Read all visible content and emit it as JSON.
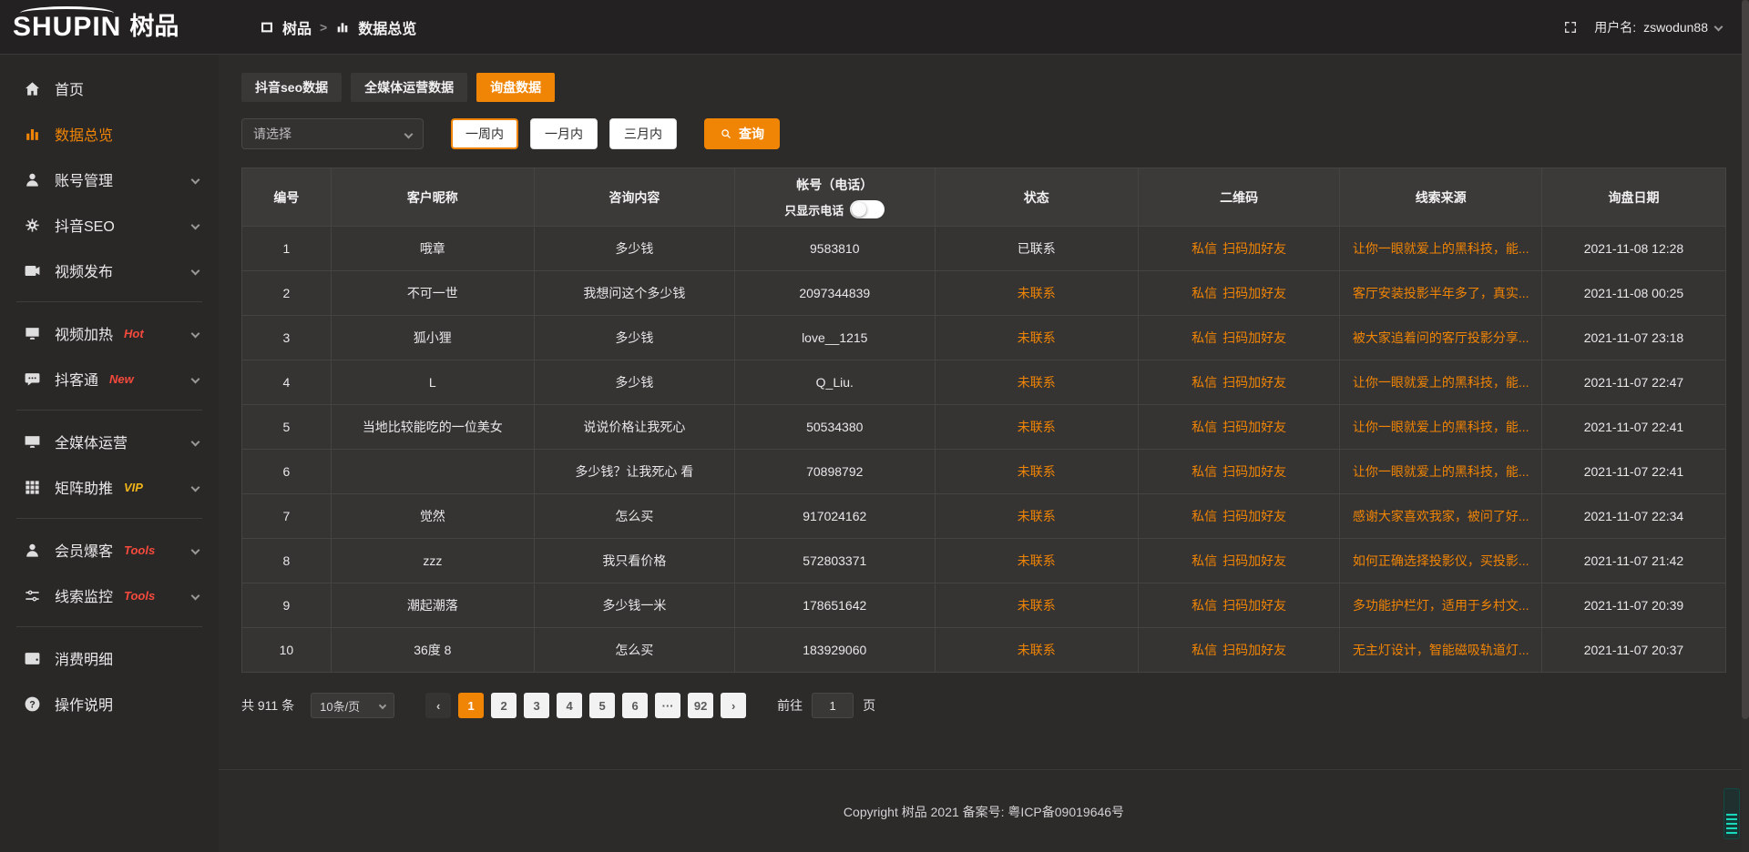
{
  "colors": {
    "accent": "#f08505",
    "badge_red": "#f54a3c",
    "badge_gold": "#f0b519",
    "link_orange": "#f08505"
  },
  "logo": {
    "en": "SHUPIN",
    "cn": "树品"
  },
  "header": {
    "breadcrumb_root": "树品",
    "breadcrumb_sep": ">",
    "breadcrumb_current": "数据总览",
    "username_label": "用户名:",
    "username": "zswodun88"
  },
  "icons": {
    "breadcrumb_root": "app-icon",
    "breadcrumb_current": "chart-icon",
    "fullscreen": "fullscreen-icon",
    "search": "search-icon"
  },
  "sidebar": {
    "items": [
      {
        "icon": "home-icon",
        "label": "首页",
        "row_class": "",
        "badge": "",
        "badge_class": "",
        "has_chevron": false
      },
      {
        "icon": "chart-icon",
        "label": "数据总览",
        "row_class": "active",
        "badge": "",
        "badge_class": "",
        "has_chevron": false
      },
      {
        "icon": "user-icon",
        "label": "账号管理",
        "row_class": "",
        "badge": "",
        "badge_class": "",
        "has_chevron": true
      },
      {
        "icon": "gear-icon",
        "label": "抖音SEO",
        "row_class": "",
        "badge": "",
        "badge_class": "",
        "has_chevron": true
      },
      {
        "icon": "video-icon",
        "label": "视频发布",
        "row_class": "",
        "badge": "",
        "badge_class": "",
        "has_chevron": true
      },
      {
        "row_class": "divider"
      },
      {
        "icon": "heat-icon",
        "label": "视频加热",
        "row_class": "",
        "badge": "Hot",
        "badge_class": "red",
        "has_chevron": true
      },
      {
        "icon": "chat-icon",
        "label": "抖客通",
        "row_class": "",
        "badge": "New",
        "badge_class": "red",
        "has_chevron": true
      },
      {
        "row_class": "divider"
      },
      {
        "icon": "monitor-icon",
        "label": "全媒体运营",
        "row_class": "",
        "badge": "",
        "badge_class": "",
        "has_chevron": true
      },
      {
        "icon": "grid-icon",
        "label": "矩阵助推",
        "row_class": "",
        "badge": "VIP",
        "badge_class": "gold",
        "has_chevron": true
      },
      {
        "row_class": "divider"
      },
      {
        "icon": "member-icon",
        "label": "会员爆客",
        "row_class": "",
        "badge": "Tools",
        "badge_class": "red",
        "has_chevron": true
      },
      {
        "icon": "sliders-icon",
        "label": "线索监控",
        "row_class": "",
        "badge": "Tools",
        "badge_class": "red",
        "has_chevron": true
      },
      {
        "row_class": "divider"
      },
      {
        "icon": "wallet-icon",
        "label": "消费明细",
        "row_class": "",
        "badge": "",
        "badge_class": "",
        "has_chevron": false
      },
      {
        "icon": "question-icon",
        "label": "操作说明",
        "row_class": "",
        "badge": "",
        "badge_class": "",
        "has_chevron": false
      }
    ]
  },
  "tabs": [
    {
      "label": "抖音seo数据",
      "cls": ""
    },
    {
      "label": "全媒体运营数据",
      "cls": ""
    },
    {
      "label": "询盘数据",
      "cls": "active"
    }
  ],
  "filters": {
    "select_placeholder": "请选择",
    "ranges": [
      {
        "label": "一周内",
        "cls": "active"
      },
      {
        "label": "一月内",
        "cls": ""
      },
      {
        "label": "三月内",
        "cls": ""
      }
    ],
    "search_label": "查询"
  },
  "table": {
    "columns": [
      "编号",
      "客户昵称",
      "咨询内容",
      "帐号（电话）",
      "状态",
      "二维码",
      "线索来源",
      "询盘日期"
    ],
    "phone_toggle_label": "只显示电话",
    "rows": [
      {
        "id": "1",
        "nickname": "哦章",
        "content": "多少钱",
        "account": "9583810",
        "status": "已联系",
        "status_class": "contacted",
        "qr_link1": "私信",
        "qr_link2": "扫码加好友",
        "source": "让你一眼就爱上的黑科技，能...",
        "date": "2021-11-08 12:28"
      },
      {
        "id": "2",
        "nickname": "不可一世",
        "content": "我想问这个多少钱",
        "account": "2097344839",
        "status": "未联系",
        "status_class": "uncontacted",
        "qr_link1": "私信",
        "qr_link2": "扫码加好友",
        "source": "客厅安装投影半年多了，真实...",
        "date": "2021-11-08 00:25"
      },
      {
        "id": "3",
        "nickname": "狐小狸",
        "content": "多少钱",
        "account": "love__1215",
        "status": "未联系",
        "status_class": "uncontacted",
        "qr_link1": "私信",
        "qr_link2": "扫码加好友",
        "source": "被大家追着问的客厅投影分享...",
        "date": "2021-11-07 23:18"
      },
      {
        "id": "4",
        "nickname": "L",
        "content": "多少钱",
        "account": "Q_Liu.",
        "status": "未联系",
        "status_class": "uncontacted",
        "qr_link1": "私信",
        "qr_link2": "扫码加好友",
        "source": "让你一眼就爱上的黑科技，能...",
        "date": "2021-11-07 22:47"
      },
      {
        "id": "5",
        "nickname": "当地比较能吃的一位美女",
        "content": "说说价格让我死心",
        "account": "50534380",
        "status": "未联系",
        "status_class": "uncontacted",
        "qr_link1": "私信",
        "qr_link2": "扫码加好友",
        "source": "让你一眼就爱上的黑科技，能...",
        "date": "2021-11-07 22:41"
      },
      {
        "id": "6",
        "nickname": "",
        "content": "多少钱？让我死心 看",
        "account": "70898792",
        "status": "未联系",
        "status_class": "uncontacted",
        "qr_link1": "私信",
        "qr_link2": "扫码加好友",
        "source": "让你一眼就爱上的黑科技，能...",
        "date": "2021-11-07 22:41"
      },
      {
        "id": "7",
        "nickname": "觉然",
        "content": "怎么买",
        "account": "917024162",
        "status": "未联系",
        "status_class": "uncontacted",
        "qr_link1": "私信",
        "qr_link2": "扫码加好友",
        "source": "感谢大家喜欢我家，被问了好...",
        "date": "2021-11-07 22:34"
      },
      {
        "id": "8",
        "nickname": "zzz",
        "content": "我只看价格",
        "account": "572803371",
        "status": "未联系",
        "status_class": "uncontacted",
        "qr_link1": "私信",
        "qr_link2": "扫码加好友",
        "source": "如何正确选择投影仪，买投影...",
        "date": "2021-11-07 21:42"
      },
      {
        "id": "9",
        "nickname": "潮起潮落",
        "content": "多少钱一米",
        "account": "178651642",
        "status": "未联系",
        "status_class": "uncontacted",
        "qr_link1": "私信",
        "qr_link2": "扫码加好友",
        "source": "多功能护栏灯，适用于乡村文...",
        "date": "2021-11-07 20:39"
      },
      {
        "id": "10",
        "nickname": "36度 8",
        "content": "怎么买",
        "account": "183929060",
        "status": "未联系",
        "status_class": "uncontacted",
        "qr_link1": "私信",
        "qr_link2": "扫码加好友",
        "source": "无主灯设计，智能磁吸轨道灯...",
        "date": "2021-11-07 20:37"
      }
    ]
  },
  "pagination": {
    "total_label": "共 911 条",
    "page_size": "10条/页",
    "pages": [
      {
        "label": "‹",
        "cls": "prev"
      },
      {
        "label": "1",
        "cls": "active"
      },
      {
        "label": "2",
        "cls": ""
      },
      {
        "label": "3",
        "cls": ""
      },
      {
        "label": "4",
        "cls": ""
      },
      {
        "label": "5",
        "cls": ""
      },
      {
        "label": "6",
        "cls": ""
      },
      {
        "label": "···",
        "cls": ""
      },
      {
        "label": "92",
        "cls": ""
      },
      {
        "label": "›",
        "cls": ""
      }
    ],
    "goto_label": "前往",
    "goto_value": "1",
    "page_label": "页"
  },
  "footer": {
    "copyright": "Copyright 树品 2021 备案号: 粤ICP备09019646号"
  }
}
